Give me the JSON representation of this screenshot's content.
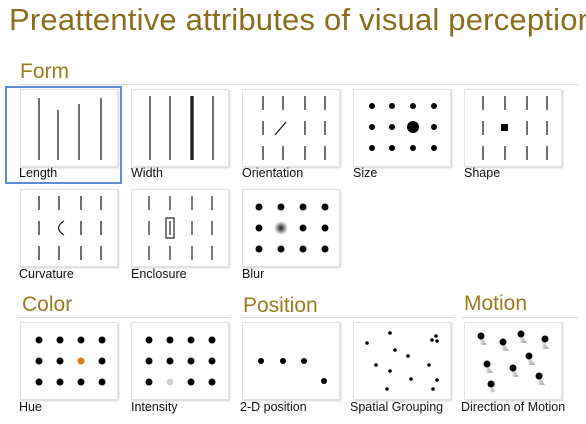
{
  "title": "Preattentive attributes of visual perception",
  "sections": {
    "form": "Form",
    "color": "Color",
    "position": "Position",
    "motion": "Motion"
  },
  "tiles": {
    "length": "Length",
    "width": "Width",
    "orientation": "Orientation",
    "size": "Size",
    "shape": "Shape",
    "curvature": "Curvature",
    "enclosure": "Enclosure",
    "blur": "Blur",
    "hue": "Hue",
    "intensity": "Intensity",
    "position_2d": "2-D position",
    "spatial_grouping": "Spatial Grouping",
    "direction_of_motion": "Direction of Motion"
  },
  "colors": {
    "title": "#8a6d1c",
    "highlight": "#5b8bd0",
    "hue_accent": "#e07b1a",
    "intensity_accent": "#cfcfcf"
  },
  "selected_tile": "length"
}
